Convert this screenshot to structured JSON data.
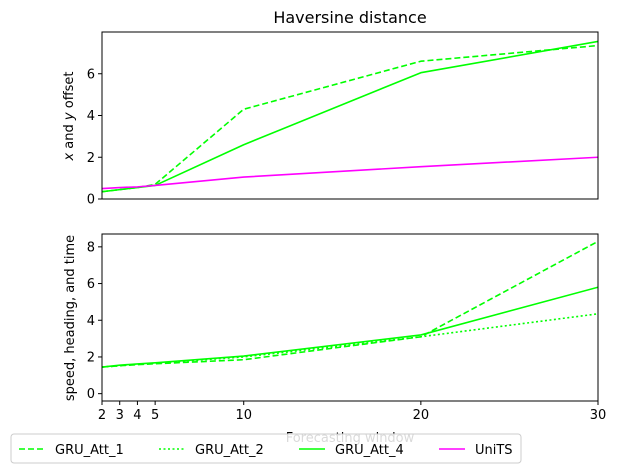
{
  "chart_data": [
    {
      "type": "line",
      "title": "Haversine distance",
      "xlabel": "",
      "ylabel": "x and y offset",
      "x": [
        2,
        3,
        4,
        5,
        10,
        20,
        30
      ],
      "xlim": [
        2,
        30
      ],
      "ylim": [
        0,
        8
      ],
      "yticks": [
        0,
        2,
        4,
        6
      ],
      "xticks_visible": false,
      "series": [
        {
          "name": "GRU_Att_1",
          "color": "#00ff00",
          "dash": "dashed",
          "values": [
            0.35,
            0.45,
            0.55,
            0.7,
            4.3,
            6.6,
            7.35
          ]
        },
        {
          "name": "GRU_Att_4",
          "color": "#00ff00",
          "dash": "solid",
          "values": [
            0.35,
            0.45,
            0.55,
            0.65,
            2.6,
            6.05,
            7.55
          ]
        },
        {
          "name": "UniTS",
          "color": "#ff00ff",
          "dash": "solid",
          "values": [
            0.5,
            0.55,
            0.58,
            0.65,
            1.05,
            1.55,
            2.0
          ]
        }
      ]
    },
    {
      "type": "line",
      "title": "",
      "xlabel": "Forecasting window",
      "ylabel": "speed, heading, and time",
      "x": [
        2,
        3,
        4,
        5,
        10,
        20,
        30
      ],
      "xticks": [
        2,
        3,
        4,
        5,
        10,
        20,
        30
      ],
      "xlim": [
        2,
        30
      ],
      "ylim": [
        -0.4,
        8.7
      ],
      "yticks": [
        0,
        2,
        4,
        6,
        8
      ],
      "series": [
        {
          "name": "GRU_Att_1",
          "color": "#00ff00",
          "dash": "dashed",
          "values": [
            1.45,
            1.52,
            1.58,
            1.63,
            1.85,
            3.1,
            8.3
          ]
        },
        {
          "name": "GRU_Att_2",
          "color": "#00ff00",
          "dash": "dotted",
          "values": [
            1.45,
            1.52,
            1.6,
            1.66,
            2.0,
            3.1,
            4.35
          ]
        },
        {
          "name": "GRU_Att_4",
          "color": "#00ff00",
          "dash": "solid",
          "values": [
            1.45,
            1.55,
            1.62,
            1.68,
            2.05,
            3.2,
            5.8
          ]
        }
      ]
    }
  ],
  "legend": {
    "placement": "bottom",
    "entries": [
      {
        "label": "GRU_Att_1",
        "color": "#00ff00",
        "dash": "dashed"
      },
      {
        "label": "GRU_Att_2",
        "color": "#00ff00",
        "dash": "dotted"
      },
      {
        "label": "GRU_Att_4",
        "color": "#00ff00",
        "dash": "solid"
      },
      {
        "label": "UniTS",
        "color": "#ff00ff",
        "dash": "solid"
      }
    ]
  }
}
